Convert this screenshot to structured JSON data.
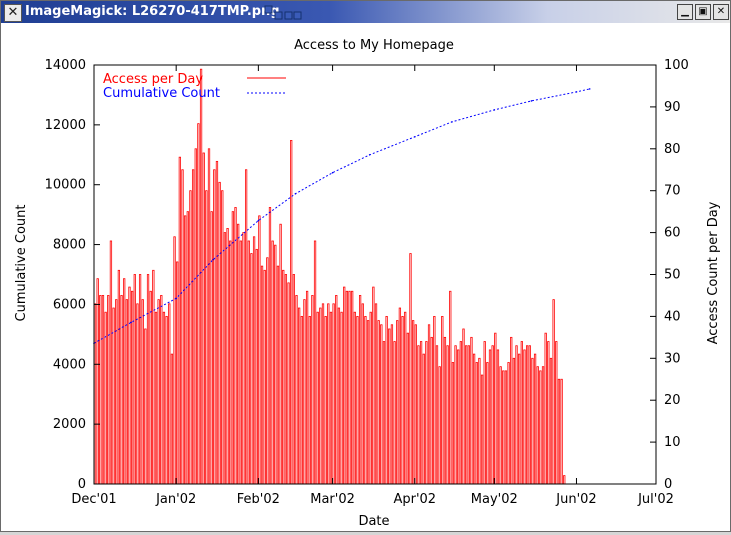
{
  "window": {
    "title": "ImageMagick: L26270-417TMP.png",
    "icon": "close-x-icon",
    "buttons": [
      "minimize-icon",
      "maximize-icon",
      "close-icon"
    ]
  },
  "chart_data": {
    "type": "bar",
    "title": "Access to My Homepage",
    "xlabel": "Date",
    "ylabel_left": "Cumulative Count",
    "ylabel_right": "Access Count per Day",
    "x_ticks": [
      "Dec'01",
      "Jan'02",
      "Feb'02",
      "Mar'02",
      "Apr'02",
      "May'02",
      "Jun'02",
      "Jul'02"
    ],
    "y_left_ticks": [
      0,
      2000,
      4000,
      6000,
      8000,
      10000,
      12000,
      14000
    ],
    "y_right_ticks": [
      0,
      10,
      20,
      30,
      40,
      50,
      60,
      70,
      80,
      90,
      100
    ],
    "y_left_range": [
      0,
      14000
    ],
    "y_right_range": [
      0,
      100
    ],
    "x_range": [
      "2001-12-01",
      "2002-07-01"
    ],
    "legend_position": "top-left",
    "colors": {
      "bars": "#ff0000",
      "cumulative": "#0000ff"
    },
    "series": [
      {
        "name": "Access per Day",
        "axis": "right",
        "style": "bars",
        "start_date": "2001-12-01",
        "values": [
          43,
          49,
          45,
          45,
          41,
          45,
          58,
          42,
          44,
          51,
          45,
          49,
          44,
          47,
          46,
          50,
          43,
          50,
          44,
          37,
          50,
          46,
          51,
          41,
          44,
          45,
          41,
          40,
          43,
          31,
          59,
          53,
          78,
          75,
          64,
          65,
          70,
          75,
          80,
          86,
          99,
          79,
          70,
          80,
          65,
          75,
          77,
          72,
          70,
          60,
          61,
          58,
          65,
          66,
          62,
          58,
          60,
          75,
          58,
          55,
          59,
          56,
          64,
          52,
          51,
          54,
          66,
          58,
          57,
          52,
          62,
          51,
          50,
          48,
          82,
          50,
          45,
          42,
          40,
          44,
          46,
          40,
          45,
          58,
          41,
          42,
          43,
          40,
          43,
          41,
          43,
          45,
          42,
          41,
          47,
          46,
          46,
          46,
          41,
          40,
          45,
          43,
          40,
          39,
          41,
          47,
          43,
          39,
          38,
          34,
          40,
          37,
          38,
          34,
          39,
          42,
          40,
          41,
          36,
          55,
          39,
          38,
          33,
          34,
          31,
          34,
          38,
          35,
          40,
          33,
          28,
          40,
          35,
          33,
          46,
          29,
          33,
          32,
          34,
          37,
          33,
          33,
          35,
          31,
          29,
          30,
          26,
          34,
          29,
          32,
          33,
          36,
          32,
          28,
          27,
          27,
          29,
          35,
          30,
          33,
          31,
          34,
          32,
          33,
          33,
          30,
          31,
          28,
          27,
          28,
          36,
          34,
          30,
          44,
          34,
          25,
          25,
          2
        ],
        "label_x": "Access per Day"
      },
      {
        "name": "Cumulative Count",
        "axis": "left",
        "style": "dotted-line",
        "x": [
          "2001-12-01",
          "2001-12-15",
          "2002-01-01",
          "2002-01-15",
          "2002-02-01",
          "2002-02-15",
          "2002-03-01",
          "2002-03-15",
          "2002-04-01",
          "2002-04-15",
          "2002-05-01",
          "2002-05-15",
          "2002-06-01",
          "2002-06-06"
        ],
        "values": [
          4700,
          5400,
          6200,
          7500,
          8800,
          9700,
          10400,
          11000,
          11600,
          12100,
          12500,
          12800,
          13100,
          13200
        ]
      }
    ]
  }
}
